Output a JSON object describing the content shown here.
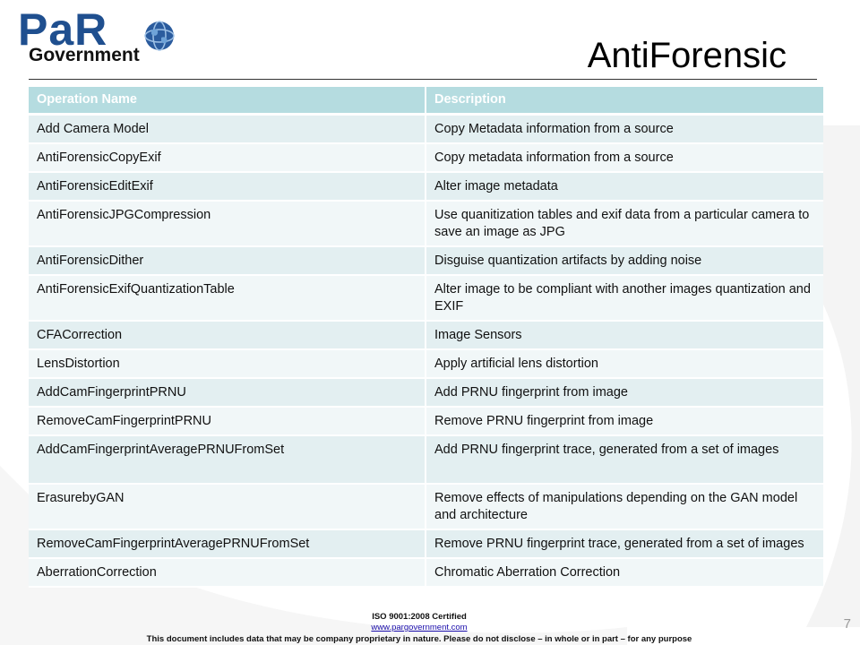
{
  "logo": {
    "text_top": "PaR",
    "text_bottom": "Government"
  },
  "slide": {
    "title": "AntiForensic",
    "page_number": "7"
  },
  "table": {
    "headers": [
      "Operation Name",
      "Description"
    ],
    "rows": [
      {
        "name": "Add Camera Model",
        "description": "Copy Metadata information from a source"
      },
      {
        "name": "AntiForensicCopyExif",
        "description": "Copy metadata information from a source"
      },
      {
        "name": "AntiForensicEditExif",
        "description": "Alter image metadata"
      },
      {
        "name": "AntiForensicJPGCompression",
        "description": "Use quanitization tables and exif data from a particular camera to save an image as JPG"
      },
      {
        "name": "AntiForensicDither",
        "description": "Disguise quantization artifacts by adding noise"
      },
      {
        "name": "AntiForensicExifQuantizationTable",
        "description": "Alter image to be compliant with another images quantization and EXIF"
      },
      {
        "name": "CFACorrection",
        "description": "Image Sensors"
      },
      {
        "name": "LensDistortion",
        "description": "Apply artificial lens distortion"
      },
      {
        "name": "AddCamFingerprintPRNU",
        "description": "Add PRNU fingerprint from image"
      },
      {
        "name": "RemoveCamFingerprintPRNU",
        "description": "Remove PRNU fingerprint from image"
      },
      {
        "name": "AddCamFingerprintAveragePRNUFromSet",
        "description": "Add PRNU fingerprint trace, generated from a set of images"
      },
      {
        "name": "ErasurebyGAN",
        "description": "Remove effects of manipulations depending on the GAN model and architecture"
      },
      {
        "name": "RemoveCamFingerprintAveragePRNUFromSet",
        "description": "Remove PRNU fingerprint trace, generated from a set of images"
      },
      {
        "name": "AberrationCorrection",
        "description": "Chromatic Aberration Correction"
      }
    ]
  },
  "footer": {
    "certification": "ISO 9001:2008 Certified",
    "link": "www.pargovernment.com",
    "notice": "This document includes data that may be company proprietary in nature. Please do not disclose – in whole or in part – for any purpose"
  },
  "colors": {
    "header_bg": "#b5dce0",
    "row_odd": "#e3eff1",
    "row_even": "#f1f7f8",
    "logo_blue": "#1f4f8f"
  }
}
